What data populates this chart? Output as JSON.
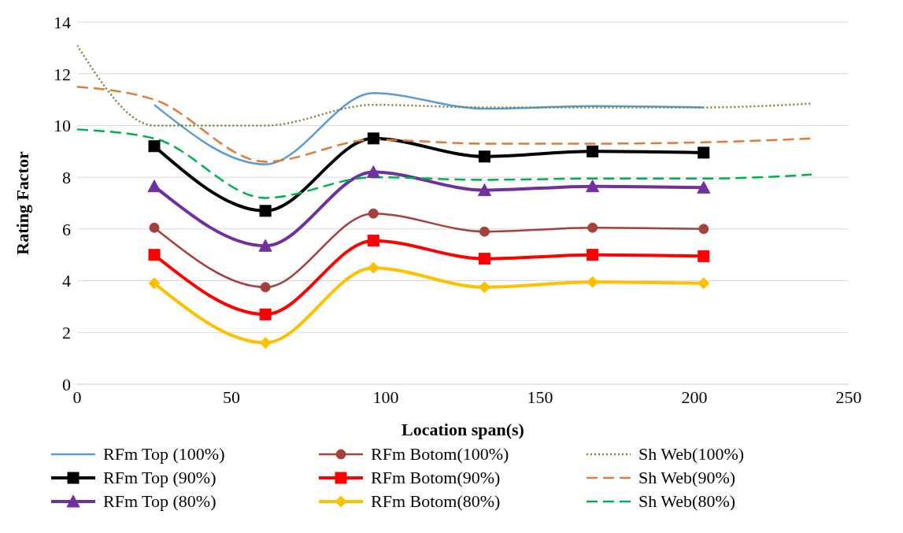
{
  "chart_data": {
    "type": "line",
    "xlabel": "Location span(s)",
    "ylabel": "Rating Factor",
    "xlim": [
      0,
      250
    ],
    "xticks": [
      0,
      50,
      100,
      150,
      200,
      250
    ],
    "ylim": [
      0,
      14
    ],
    "yticks": [
      0,
      2,
      4,
      6,
      8,
      10,
      12,
      14
    ],
    "grid": "y",
    "legend": "bottom",
    "series": [
      {
        "name": "RFm Top (100%)",
        "color": "#5b9bd5",
        "marker": "none",
        "line_style": "solid",
        "x": [
          25,
          61,
          96,
          132,
          167,
          203
        ],
        "values": [
          10.8,
          8.5,
          11.25,
          10.65,
          10.75,
          10.7
        ]
      },
      {
        "name": "RFm Botom(100%)",
        "color": "#a5403c",
        "marker": "circle",
        "line_style": "solid",
        "x": [
          25,
          61,
          96,
          132,
          167,
          203
        ],
        "values": [
          6.05,
          3.75,
          6.6,
          5.9,
          6.05,
          6.0
        ]
      },
      {
        "name": "Sh Web(100%)",
        "color": "#70883a",
        "marker": "none",
        "line_style": "dotted",
        "x": [
          0,
          25,
          61,
          96,
          132,
          167,
          203,
          238
        ],
        "values": [
          13.1,
          10.0,
          10.0,
          10.8,
          10.7,
          10.7,
          10.7,
          10.85
        ]
      },
      {
        "name": "RFm Top (90%)",
        "color": "#000000",
        "marker": "square",
        "line_style": "solid",
        "x": [
          25,
          61,
          96,
          132,
          167,
          203
        ],
        "values": [
          9.2,
          6.7,
          9.5,
          8.8,
          9.0,
          8.95
        ]
      },
      {
        "name": "RFm Botom(90%)",
        "color": "#ff0000",
        "marker": "square",
        "line_style": "solid",
        "x": [
          25,
          61,
          96,
          132,
          167,
          203
        ],
        "values": [
          5.0,
          2.7,
          5.55,
          4.85,
          5.0,
          4.95
        ]
      },
      {
        "name": "Sh Web(90%)",
        "color": "#e07b39",
        "marker": "none",
        "line_style": "dashed",
        "x": [
          0,
          25,
          61,
          96,
          132,
          167,
          203,
          238
        ],
        "values": [
          11.5,
          11.0,
          8.6,
          9.45,
          9.3,
          9.3,
          9.35,
          9.5
        ]
      },
      {
        "name": "RFm Top (80%)",
        "color": "#7030a0",
        "marker": "triangle",
        "line_style": "solid",
        "x": [
          25,
          61,
          96,
          132,
          167,
          203
        ],
        "values": [
          7.65,
          5.35,
          8.2,
          7.5,
          7.65,
          7.6
        ]
      },
      {
        "name": "RFm Botom(80%)",
        "color": "#ffc000",
        "marker": "diamond",
        "line_style": "solid",
        "x": [
          25,
          61,
          96,
          132,
          167,
          203
        ],
        "values": [
          3.9,
          1.6,
          4.5,
          3.75,
          3.95,
          3.9
        ]
      },
      {
        "name": "Sh Web(80%)",
        "color": "#00b050",
        "marker": "none",
        "line_style": "dashed",
        "x": [
          0,
          25,
          61,
          96,
          132,
          167,
          203,
          238
        ],
        "values": [
          9.85,
          9.5,
          7.2,
          8.0,
          7.9,
          7.95,
          7.95,
          8.1
        ]
      }
    ]
  }
}
